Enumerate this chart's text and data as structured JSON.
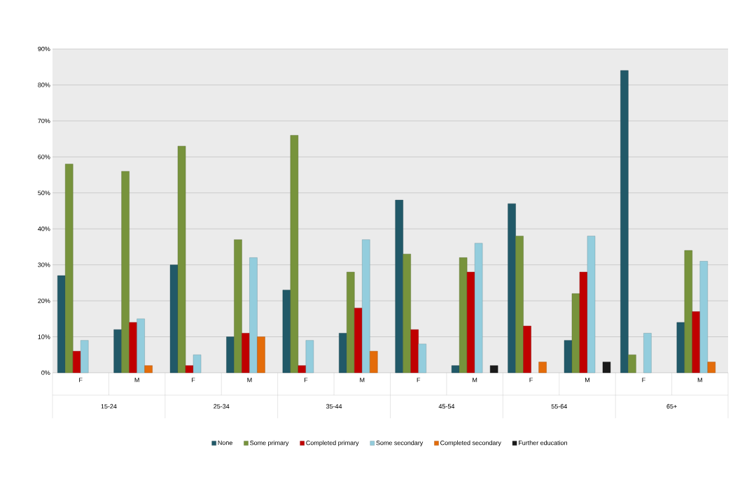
{
  "chart_data": {
    "type": "bar",
    "categories": [
      "F",
      "M",
      "F",
      "M",
      "F",
      "M",
      "F",
      "M",
      "F",
      "M",
      "F",
      "M"
    ],
    "annotations": [
      "15-24",
      "25-34",
      "35-44",
      "45-54",
      "55-64",
      "65+"
    ],
    "series": [
      {
        "name": "None",
        "color": "#215968",
        "values": [
          27,
          12,
          30,
          10,
          23,
          11,
          48,
          2,
          47,
          9,
          84,
          14
        ]
      },
      {
        "name": "Some primary",
        "color": "#77933c",
        "values": [
          58,
          56,
          63,
          37,
          66,
          28,
          33,
          32,
          38,
          22,
          5,
          34
        ]
      },
      {
        "name": "Completed primary",
        "color": "#c00000",
        "values": [
          6,
          14,
          2,
          11,
          2,
          18,
          12,
          28,
          13,
          28,
          null,
          17
        ]
      },
      {
        "name": "Some secondary",
        "color": "#93cddd",
        "values": [
          9,
          15,
          5,
          32,
          9,
          37,
          8,
          36,
          null,
          38,
          11,
          31
        ]
      },
      {
        "name": "Completed secondary",
        "color": "#e46c0a",
        "values": [
          null,
          2,
          null,
          10,
          null,
          6,
          null,
          null,
          3,
          null,
          null,
          3
        ]
      },
      {
        "name": "Further education",
        "color": "#1a1a1a",
        "values": [
          null,
          null,
          null,
          null,
          null,
          null,
          null,
          2,
          null,
          3,
          null,
          null
        ]
      }
    ],
    "ylim": [
      0,
      90
    ],
    "yticks": [
      {
        "value": 0,
        "label": "0%"
      },
      {
        "value": 10,
        "label": "10%"
      },
      {
        "value": 20,
        "label": "20%"
      },
      {
        "value": 30,
        "label": "30%"
      },
      {
        "value": 40,
        "label": "40%"
      },
      {
        "value": 50,
        "label": "50%"
      },
      {
        "value": 60,
        "label": "60%"
      },
      {
        "value": 70,
        "label": "70%"
      },
      {
        "value": 80,
        "label": "80%"
      },
      {
        "value": 90,
        "label": "90%"
      }
    ],
    "grid": "y",
    "legend": "bottom"
  }
}
